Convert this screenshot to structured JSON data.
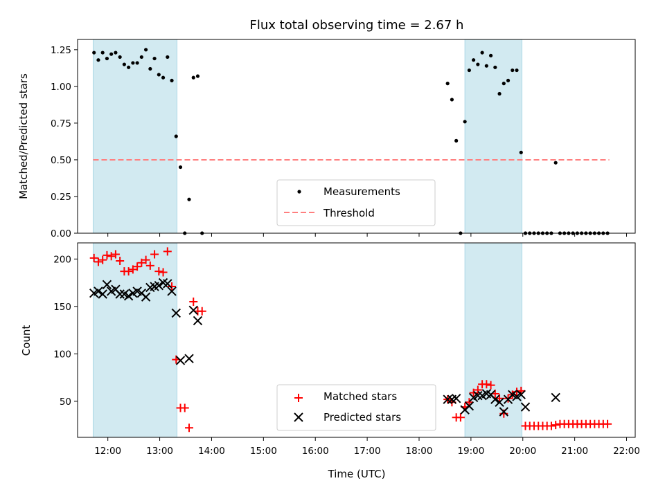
{
  "chart_data": [
    {
      "type": "scatter",
      "title": "Flux total observing time = 2.67 h",
      "xlabel": "",
      "ylabel": "Matched/Predicted stars",
      "xlim": [
        "11:25",
        "22:10"
      ],
      "ylim": [
        0,
        1.32
      ],
      "yticks": [
        "0.00",
        "0.25",
        "0.50",
        "0.75",
        "1.00",
        "1.25"
      ],
      "shaded_intervals": [
        [
          "11:43",
          "13:20"
        ],
        [
          "18:53",
          "19:59"
        ]
      ],
      "shade_color": "#add8e6",
      "legend": {
        "location": "lower center",
        "entries": [
          "Measurements",
          "Threshold"
        ]
      },
      "threshold": {
        "name": "Threshold",
        "value": 0.5,
        "x_range": [
          "11:43",
          "21:40"
        ],
        "color": "#ff7f7f",
        "style": "dashed"
      },
      "series": [
        {
          "name": "Measurements",
          "color": "#000000",
          "marker": "dot",
          "points": [
            [
              "11:44",
              1.23
            ],
            [
              "11:49",
              1.18
            ],
            [
              "11:54",
              1.23
            ],
            [
              "11:59",
              1.19
            ],
            [
              "12:04",
              1.22
            ],
            [
              "12:09",
              1.23
            ],
            [
              "12:14",
              1.2
            ],
            [
              "12:19",
              1.15
            ],
            [
              "12:24",
              1.13
            ],
            [
              "12:29",
              1.16
            ],
            [
              "12:34",
              1.16
            ],
            [
              "12:39",
              1.2
            ],
            [
              "12:44",
              1.25
            ],
            [
              "12:49",
              1.12
            ],
            [
              "12:54",
              1.19
            ],
            [
              "12:59",
              1.08
            ],
            [
              "13:04",
              1.06
            ],
            [
              "13:09",
              1.2
            ],
            [
              "13:14",
              1.04
            ],
            [
              "13:19",
              0.66
            ],
            [
              "13:24",
              0.45
            ],
            [
              "13:29",
              0.0
            ],
            [
              "13:34",
              0.23
            ],
            [
              "13:39",
              1.06
            ],
            [
              "13:44",
              1.07
            ],
            [
              "13:49",
              0.0
            ],
            [
              "18:33",
              1.02
            ],
            [
              "18:38",
              0.91
            ],
            [
              "18:43",
              0.63
            ],
            [
              "18:48",
              0.0
            ],
            [
              "18:53",
              0.76
            ],
            [
              "18:58",
              1.11
            ],
            [
              "19:03",
              1.18
            ],
            [
              "19:08",
              1.15
            ],
            [
              "19:13",
              1.23
            ],
            [
              "19:18",
              1.14
            ],
            [
              "19:23",
              1.21
            ],
            [
              "19:28",
              1.13
            ],
            [
              "19:33",
              0.95
            ],
            [
              "19:38",
              1.02
            ],
            [
              "19:43",
              1.04
            ],
            [
              "19:48",
              1.11
            ],
            [
              "19:53",
              1.11
            ],
            [
              "19:58",
              0.55
            ],
            [
              "20:03",
              0.0
            ],
            [
              "20:08",
              0.0
            ],
            [
              "20:13",
              0.0
            ],
            [
              "20:18",
              0.0
            ],
            [
              "20:23",
              0.0
            ],
            [
              "20:28",
              0.0
            ],
            [
              "20:33",
              0.0
            ],
            [
              "20:38",
              0.48
            ],
            [
              "20:43",
              0.0
            ],
            [
              "20:48",
              0.0
            ],
            [
              "20:53",
              0.0
            ],
            [
              "20:58",
              0.0
            ],
            [
              "21:03",
              0.0
            ],
            [
              "21:08",
              0.0
            ],
            [
              "21:13",
              0.0
            ],
            [
              "21:18",
              0.0
            ],
            [
              "21:23",
              0.0
            ],
            [
              "21:28",
              0.0
            ],
            [
              "21:33",
              0.0
            ],
            [
              "21:38",
              0.0
            ]
          ]
        }
      ]
    },
    {
      "type": "scatter",
      "title": "",
      "xlabel": "Time (UTC)",
      "ylabel": "Count",
      "xlim": [
        "11:25",
        "22:10"
      ],
      "ylim": [
        12,
        217
      ],
      "yticks": [
        "50",
        "100",
        "150",
        "200"
      ],
      "xticks": [
        "12:00",
        "13:00",
        "14:00",
        "15:00",
        "16:00",
        "17:00",
        "18:00",
        "19:00",
        "20:00",
        "21:00",
        "22:00"
      ],
      "shaded_intervals": [
        [
          "11:43",
          "13:20"
        ],
        [
          "18:53",
          "19:59"
        ]
      ],
      "shade_color": "#add8e6",
      "legend": {
        "location": "lower center",
        "entries": [
          "Matched stars",
          "Predicted stars"
        ]
      },
      "series": [
        {
          "name": "Matched stars",
          "color": "#ff0000",
          "marker": "plus",
          "points": [
            [
              "11:44",
              201
            ],
            [
              "11:49",
              197
            ],
            [
              "11:54",
              199
            ],
            [
              "11:59",
              204
            ],
            [
              "12:04",
              203
            ],
            [
              "12:09",
              205
            ],
            [
              "12:14",
              198
            ],
            [
              "12:19",
              187
            ],
            [
              "12:24",
              187
            ],
            [
              "12:29",
              189
            ],
            [
              "12:34",
              192
            ],
            [
              "12:39",
              196
            ],
            [
              "12:44",
              199
            ],
            [
              "12:49",
              193
            ],
            [
              "12:54",
              205
            ],
            [
              "12:59",
              187
            ],
            [
              "13:04",
              186
            ],
            [
              "13:09",
              208
            ],
            [
              "13:14",
              171
            ],
            [
              "13:19",
              94
            ],
            [
              "13:24",
              43
            ],
            [
              "13:29",
              43
            ],
            [
              "13:34",
              22
            ],
            [
              "13:39",
              155
            ],
            [
              "13:44",
              145
            ],
            [
              "13:49",
              145
            ],
            [
              "18:33",
              52
            ],
            [
              "18:38",
              49
            ],
            [
              "18:43",
              33
            ],
            [
              "18:48",
              33
            ],
            [
              "18:53",
              44
            ],
            [
              "18:58",
              49
            ],
            [
              "19:03",
              59
            ],
            [
              "19:08",
              62
            ],
            [
              "19:13",
              68
            ],
            [
              "19:18",
              68
            ],
            [
              "19:23",
              67
            ],
            [
              "19:28",
              58
            ],
            [
              "19:33",
              53
            ],
            [
              "19:38",
              37
            ],
            [
              "19:43",
              53
            ],
            [
              "19:48",
              57
            ],
            [
              "19:53",
              60
            ],
            [
              "19:58",
              61
            ],
            [
              "20:03",
              24
            ],
            [
              "20:08",
              24
            ],
            [
              "20:13",
              24
            ],
            [
              "20:18",
              24
            ],
            [
              "20:23",
              24
            ],
            [
              "20:28",
              24
            ],
            [
              "20:33",
              24
            ],
            [
              "20:38",
              25
            ],
            [
              "20:43",
              26
            ],
            [
              "20:48",
              26
            ],
            [
              "20:53",
              26
            ],
            [
              "20:58",
              26
            ],
            [
              "21:03",
              26
            ],
            [
              "21:08",
              26
            ],
            [
              "21:13",
              26
            ],
            [
              "21:18",
              26
            ],
            [
              "21:23",
              26
            ],
            [
              "21:28",
              26
            ],
            [
              "21:33",
              26
            ],
            [
              "21:38",
              26
            ]
          ]
        },
        {
          "name": "Predicted stars",
          "color": "#000000",
          "marker": "cross",
          "points": [
            [
              "11:44",
              164
            ],
            [
              "11:49",
              166
            ],
            [
              "11:54",
              163
            ],
            [
              "11:59",
              173
            ],
            [
              "12:04",
              166
            ],
            [
              "12:09",
              168
            ],
            [
              "12:14",
              163
            ],
            [
              "12:19",
              163
            ],
            [
              "12:24",
              161
            ],
            [
              "12:29",
              164
            ],
            [
              "12:34",
              166
            ],
            [
              "12:39",
              164
            ],
            [
              "12:44",
              160
            ],
            [
              "12:49",
              170
            ],
            [
              "12:54",
              171
            ],
            [
              "12:59",
              172
            ],
            [
              "13:04",
              175
            ],
            [
              "13:09",
              174
            ],
            [
              "13:14",
              166
            ],
            [
              "13:19",
              143
            ],
            [
              "13:24",
              93
            ],
            [
              "13:34",
              95
            ],
            [
              "13:39",
              146
            ],
            [
              "13:44",
              135
            ],
            [
              "18:33",
              52
            ],
            [
              "18:38",
              52
            ],
            [
              "18:43",
              53
            ],
            [
              "18:53",
              41
            ],
            [
              "18:58",
              45
            ],
            [
              "19:03",
              54
            ],
            [
              "19:08",
              56
            ],
            [
              "19:13",
              56
            ],
            [
              "19:18",
              58
            ],
            [
              "19:23",
              57
            ],
            [
              "19:28",
              52
            ],
            [
              "19:33",
              49
            ],
            [
              "19:38",
              39
            ],
            [
              "19:43",
              52
            ],
            [
              "19:48",
              57
            ],
            [
              "19:53",
              55
            ],
            [
              "19:58",
              57
            ],
            [
              "20:03",
              44
            ],
            [
              "20:38",
              54
            ]
          ]
        }
      ]
    }
  ]
}
